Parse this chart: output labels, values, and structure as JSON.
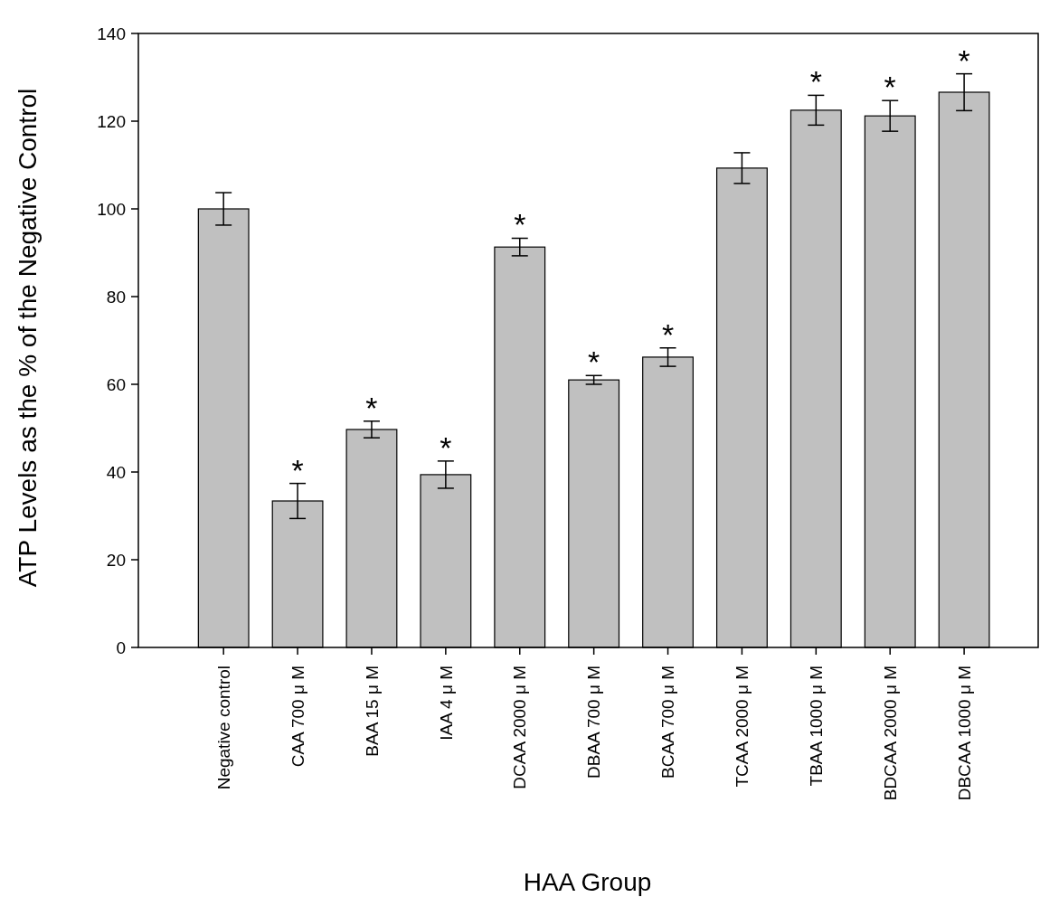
{
  "chart_data": {
    "type": "bar",
    "xlabel": "HAA Group",
    "ylabel": "ATP Levels as the % of the Negative Control",
    "categories": [
      "Negative control",
      "CAA 700 μ M",
      "BAA 15 μ M",
      "IAA 4 μ M",
      "DCAA 2000 μ M",
      "DBAA 700 μ M",
      "BCAA 700 μ M",
      "TCAA 2000 μ M",
      "TBAA 1000 μ M",
      "BDCAA 2000 μ M",
      "DBCAA 1000 μ M"
    ],
    "values": [
      100,
      33.4,
      49.7,
      39.4,
      91.3,
      61.0,
      66.2,
      109.3,
      122.5,
      121.2,
      126.6
    ],
    "errors": [
      3.7,
      4.0,
      1.9,
      3.1,
      2.0,
      1.0,
      2.1,
      3.5,
      3.4,
      3.5,
      4.2
    ],
    "color": "#c0c0c0",
    "ylim": [
      0,
      140
    ],
    "yticks": [
      0,
      20,
      40,
      60,
      80,
      100,
      120,
      140
    ],
    "grid": false,
    "annotations": [
      {
        "text": "*",
        "x": "CAA 700 μ M",
        "y": 37.4
      },
      {
        "text": "*",
        "x": "BAA 15 μ M",
        "y": 51.6
      },
      {
        "text": "*",
        "x": "IAA 4 μ M",
        "y": 42.5
      },
      {
        "text": "*",
        "x": "DCAA 2000 μ M",
        "y": 93.3
      },
      {
        "text": "*",
        "x": "DBAA 700 μ M",
        "y": 62.0
      },
      {
        "text": "*",
        "x": "BCAA 700 μ M",
        "y": 68.3
      },
      {
        "text": "*",
        "x": "TBAA 1000 μ M",
        "y": 125.9
      },
      {
        "text": "*",
        "x": "BDCAA 2000 μ M",
        "y": 124.7
      },
      {
        "text": "*",
        "x": "DBCAA 1000 μ M",
        "y": 130.8
      }
    ]
  }
}
